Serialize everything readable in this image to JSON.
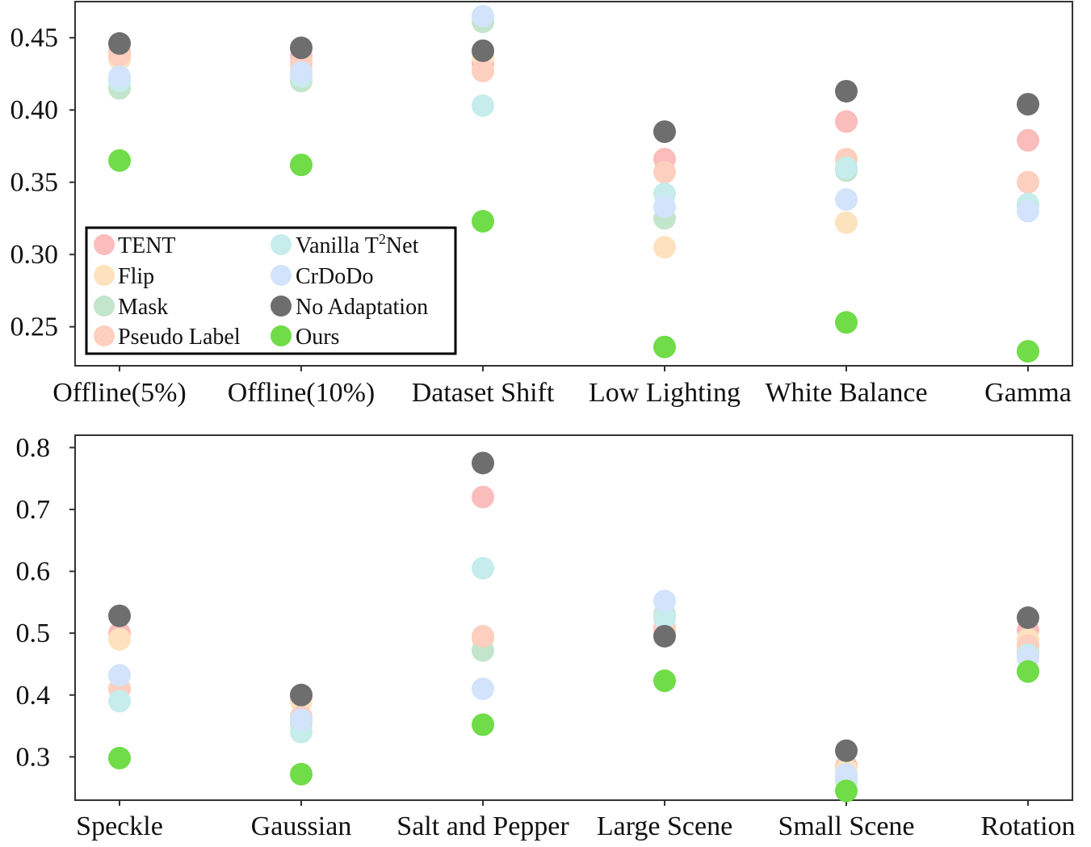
{
  "colors": {
    "TENT": "#fbbcbc",
    "Flip": "#fde3bd",
    "Mask": "#c3e5cc",
    "Pseudo Label": "#fdcfbf",
    "Vanilla T2Net": "#c6ecec",
    "CrDoDo": "#d2e3fb",
    "No Adaptation": "#6e6e6e",
    "Ours": "#6fdc48"
  },
  "legend": {
    "entries": [
      {
        "key": "TENT",
        "label": "TENT"
      },
      {
        "key": "Flip",
        "label": "Flip"
      },
      {
        "key": "Mask",
        "label": "Mask"
      },
      {
        "key": "Pseudo Label",
        "label": "Pseudo Label"
      },
      {
        "key": "Vanilla T2Net",
        "label": "Vanilla T",
        "sup": "2",
        "suffix": "Net"
      },
      {
        "key": "CrDoDo",
        "label": "CrDoDo"
      },
      {
        "key": "No Adaptation",
        "label": "No Adaptation"
      },
      {
        "key": "Ours",
        "label": "Ours"
      }
    ]
  },
  "chart_data": [
    {
      "type": "scatter",
      "title": "",
      "xlabel": "",
      "ylabel": "",
      "categories": [
        "Offline(5%)",
        "Offline(10%)",
        "Dataset Shift",
        "Low Lighting",
        "White Balance",
        "Gamma"
      ],
      "ylim": [
        0.223,
        0.475
      ],
      "yticks": [
        0.25,
        0.3,
        0.35,
        0.4,
        0.45
      ],
      "ytick_labels": [
        "0.25",
        "0.30",
        "0.35",
        "0.40",
        "0.45"
      ],
      "series": [
        {
          "name": "TENT",
          "values": [
            0.44,
            0.437,
            0.432,
            0.366,
            0.392,
            0.379
          ]
        },
        {
          "name": "Flip",
          "values": [
            0.435,
            0.43,
            0.437,
            0.305,
            0.322,
            0.35
          ]
        },
        {
          "name": "Mask",
          "values": [
            0.415,
            0.42,
            0.461,
            0.325,
            0.358,
            0.334
          ]
        },
        {
          "name": "Pseudo Label",
          "values": [
            0.438,
            0.433,
            0.427,
            0.357,
            0.366,
            0.35
          ]
        },
        {
          "name": "Vanilla T2Net",
          "values": [
            0.42,
            0.423,
            0.403,
            0.342,
            0.36,
            0.335
          ]
        },
        {
          "name": "CrDoDo",
          "values": [
            0.423,
            0.426,
            0.465,
            0.333,
            0.338,
            0.33
          ]
        },
        {
          "name": "No Adaptation",
          "values": [
            0.446,
            0.443,
            0.441,
            0.385,
            0.413,
            0.404
          ]
        },
        {
          "name": "Ours",
          "values": [
            0.365,
            0.362,
            0.323,
            0.236,
            0.253,
            0.233
          ]
        }
      ]
    },
    {
      "type": "scatter",
      "title": "",
      "xlabel": "",
      "ylabel": "",
      "categories": [
        "Speckle",
        "Gaussian",
        "Salt and Pepper",
        "Large Scene",
        "Small Scene",
        "Rotation"
      ],
      "ylim": [
        0.23,
        0.82
      ],
      "yticks": [
        0.3,
        0.4,
        0.5,
        0.6,
        0.7,
        0.8
      ],
      "ytick_labels": [
        "0.3",
        "0.4",
        "0.5",
        "0.6",
        "0.7",
        "0.8"
      ],
      "series": [
        {
          "name": "TENT",
          "values": [
            0.5,
            0.395,
            0.72,
            0.505,
            0.285,
            0.505
          ]
        },
        {
          "name": "Flip",
          "values": [
            0.49,
            0.39,
            0.49,
            0.5,
            0.28,
            0.49
          ]
        },
        {
          "name": "Mask",
          "values": [
            0.41,
            0.355,
            0.472,
            0.53,
            0.262,
            0.47
          ]
        },
        {
          "name": "Pseudo Label",
          "values": [
            0.41,
            0.365,
            0.495,
            0.51,
            0.27,
            0.48
          ]
        },
        {
          "name": "Vanilla T2Net",
          "values": [
            0.39,
            0.34,
            0.605,
            0.525,
            0.265,
            0.465
          ]
        },
        {
          "name": "CrDoDo",
          "values": [
            0.432,
            0.36,
            0.41,
            0.552,
            0.272,
            0.46
          ]
        },
        {
          "name": "No Adaptation",
          "values": [
            0.528,
            0.4,
            0.775,
            0.495,
            0.31,
            0.525
          ]
        },
        {
          "name": "Ours",
          "values": [
            0.298,
            0.272,
            0.352,
            0.423,
            0.245,
            0.438
          ]
        }
      ]
    }
  ]
}
